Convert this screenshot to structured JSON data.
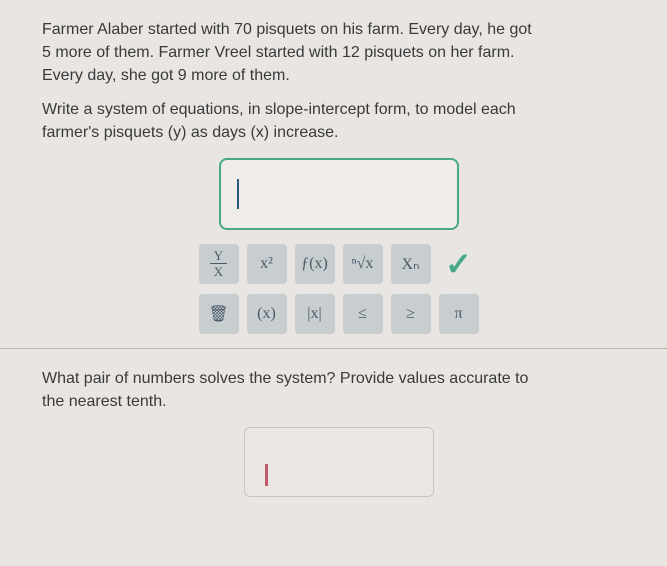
{
  "problem": {
    "line1": "Farmer Alaber started with 70 pisquets on his farm.  Every day, he got",
    "line2": "5 more of them.  Farmer Vreel started with 12 pisquets on her farm.",
    "line3": "Every day, she got 9 more of them."
  },
  "prompt1": {
    "line1": "Write a system of equations, in slope-intercept form, to model each",
    "line2": "farmer's pisquets (y) as days (x) increase."
  },
  "toolbar": {
    "frac_top": "Y",
    "frac_bot": "X",
    "power": "x²",
    "func": "ƒ(x)",
    "root": "ⁿ√x",
    "sub": "Xₙ",
    "check": "✓",
    "trash": "🗑",
    "paren": "(x)",
    "abs": "|x|",
    "lte": "≤",
    "gte": "≥",
    "pi": "π"
  },
  "prompt2": {
    "line1": "What pair of numbers solves the system? Provide values accurate to",
    "line2": "the nearest tenth."
  },
  "colors": {
    "background": "#e8e5e2",
    "text": "#3a3a3a",
    "input_border": "#4aa88a",
    "tool_bg": "#c8cdd0",
    "tool_text": "#4a5a68",
    "check": "#4aa88a",
    "divider": "#b8b5b0",
    "cursor2": "#c05a6a"
  }
}
